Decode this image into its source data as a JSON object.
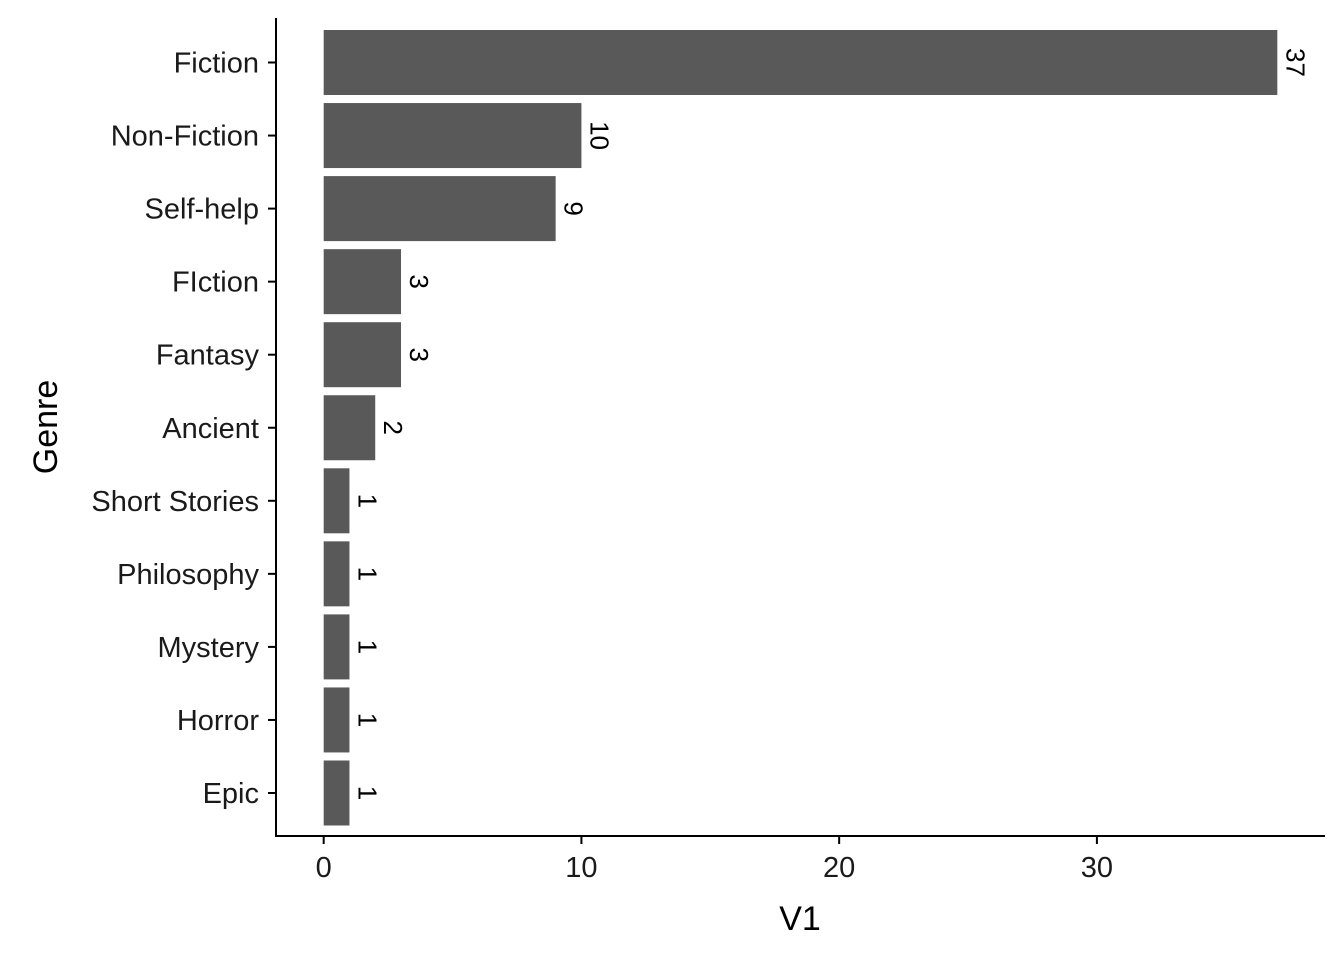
{
  "chart_data": {
    "type": "bar",
    "orientation": "horizontal",
    "categories": [
      "Fiction",
      "Non-Fiction",
      "Self-help",
      "FIction",
      "Fantasy",
      "Ancient",
      "Short Stories",
      "Philosophy",
      "Mystery",
      "Horror",
      "Epic"
    ],
    "values": [
      37,
      10,
      9,
      3,
      3,
      2,
      1,
      1,
      1,
      1,
      1
    ],
    "xlabel": "V1",
    "ylabel": "Genre",
    "xticks": [
      0,
      10,
      20,
      30
    ],
    "xlim": [
      -1.85,
      38.85
    ],
    "grid": false,
    "bar_color": "#595959",
    "data_labels_rotation": 90
  }
}
